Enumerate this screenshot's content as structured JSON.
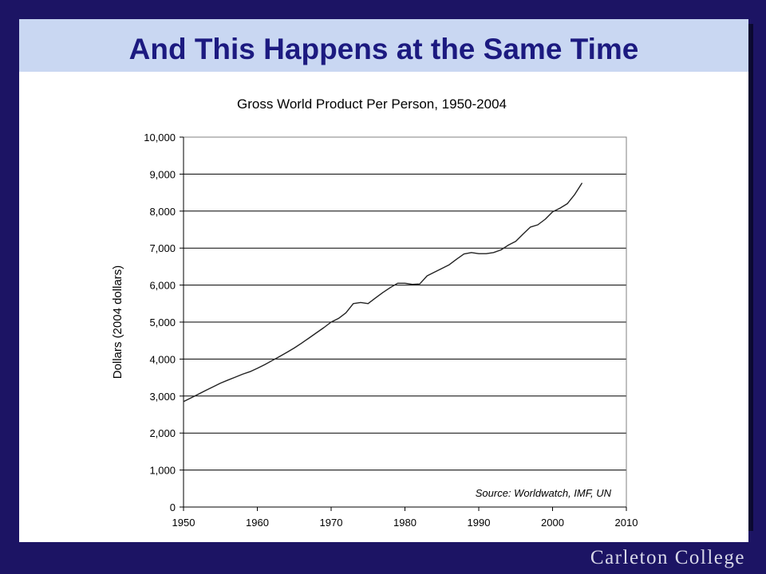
{
  "slide": {
    "title": "And This Happens at the Same Time",
    "footer": "Carleton College"
  },
  "colors": {
    "background": "#1c1464",
    "title_bar": "#c9d7f2",
    "title_text": "#1c1a80",
    "line": "#222222",
    "grid": "#000000"
  },
  "chart_data": {
    "type": "line",
    "title": "Gross World Product Per Person, 1950-2004",
    "xlabel": "",
    "ylabel": "Dollars (2004 dollars)",
    "annotation": "Source: Worldwatch, IMF, UN",
    "xlim": [
      1950,
      2010
    ],
    "ylim": [
      0,
      10000
    ],
    "x_ticks": [
      1950,
      1960,
      1970,
      1980,
      1990,
      2000,
      2010
    ],
    "x_tick_labels": [
      "1950",
      "1960",
      "1970",
      "1980",
      "1990",
      "2000",
      "2010"
    ],
    "y_ticks": [
      0,
      1000,
      2000,
      3000,
      4000,
      5000,
      6000,
      7000,
      8000,
      9000,
      10000
    ],
    "y_tick_labels": [
      "0",
      "1,000",
      "2,000",
      "3,000",
      "4,000",
      "5,000",
      "6,000",
      "7,000",
      "8,000",
      "9,000",
      "10,000"
    ],
    "grid": "horizontal",
    "series": [
      {
        "x": [
          1950,
          1951,
          1952,
          1953,
          1954,
          1955,
          1956,
          1957,
          1958,
          1959,
          1960,
          1961,
          1962,
          1963,
          1964,
          1965,
          1966,
          1967,
          1968,
          1969,
          1970,
          1971,
          1972,
          1973,
          1974,
          1975,
          1976,
          1977,
          1978,
          1979,
          1980,
          1981,
          1982,
          1983,
          1984,
          1985,
          1986,
          1987,
          1988,
          1989,
          1990,
          1991,
          1992,
          1993,
          1994,
          1995,
          1996,
          1997,
          1998,
          1999,
          2000,
          2001,
          2002,
          2003,
          2004
        ],
        "values": [
          2850,
          2950,
          3050,
          3150,
          3250,
          3350,
          3430,
          3510,
          3590,
          3660,
          3750,
          3850,
          3960,
          4070,
          4180,
          4300,
          4430,
          4570,
          4710,
          4850,
          5000,
          5100,
          5250,
          5500,
          5530,
          5500,
          5650,
          5800,
          5930,
          6050,
          6050,
          6020,
          6030,
          6250,
          6350,
          6450,
          6550,
          6700,
          6840,
          6880,
          6850,
          6850,
          6880,
          6950,
          7080,
          7180,
          7380,
          7570,
          7630,
          7780,
          7980,
          8080,
          8200,
          8450,
          8760
        ]
      }
    ]
  }
}
